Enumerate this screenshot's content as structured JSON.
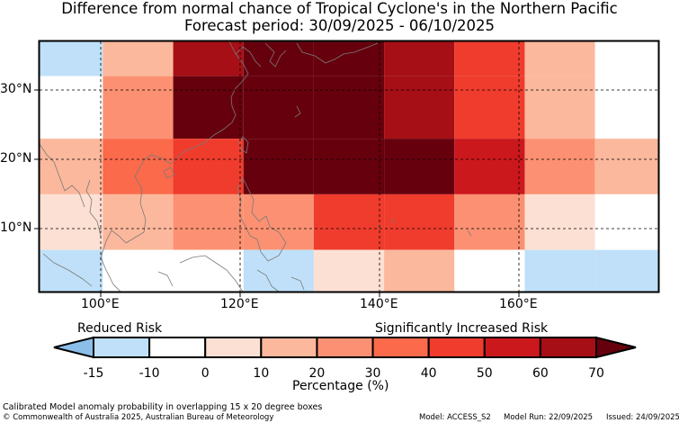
{
  "title": "Difference from normal chance of Tropical Cyclone's in the Northern Pacific",
  "subtitle": "Forecast period: 30/09/2025 - 06/10/2025",
  "lat_labels": [
    "30°N",
    "20°N",
    "10°N"
  ],
  "lon_labels": [
    "100°E",
    "120°E",
    "140°E",
    "160°E"
  ],
  "legend": {
    "left_caption": "Reduced Risk",
    "right_caption": "Significantly Increased Risk",
    "tick_labels": [
      "-15",
      "-10",
      "0",
      "10",
      "20",
      "30",
      "40",
      "50",
      "60",
      "70"
    ],
    "axis_label": "Percentage (%)",
    "colors": [
      "#8bbfe9",
      "#bfe0f8",
      "#ffffff",
      "#fde0d4",
      "#fbb89c",
      "#fb9172",
      "#fa6a4b",
      "#ef3c2d",
      "#cb181d",
      "#a50f15",
      "#67000d"
    ]
  },
  "footer": {
    "note": "Calibrated Model anomaly probability in overlapping 15 x 20 degree boxes",
    "copyright": "© Commonwealth of Australia 2025, Australian Bureau of Meteorology",
    "model": "Model: ACCESS_S2",
    "model_run": "Model Run: 22/09/2025",
    "issued": "Issued: 24/09/2025"
  },
  "map_data": {
    "lon_range": [
      91,
      179
    ],
    "lat_range": [
      0,
      36
    ],
    "cell_columns_deg": [
      91,
      100,
      110,
      120,
      130,
      140,
      150,
      160,
      170,
      179
    ],
    "cell_rows_deg": [
      36,
      31,
      22,
      14,
      6,
      0
    ],
    "cell_colors": [
      [
        "#bfe0f8",
        "#fbb89c",
        "#a50f15",
        "#67000d",
        "#67000d",
        "#a50f15",
        "#ef3c2d",
        "#fbb89c",
        "#ffffff"
      ],
      [
        "#ffffff",
        "#fb9172",
        "#67000d",
        "#67000d",
        "#67000d",
        "#a50f15",
        "#ef3c2d",
        "#fbb89c",
        "#ffffff"
      ],
      [
        "#fbb89c",
        "#fa6a4b",
        "#ef3c2d",
        "#67000d",
        "#67000d",
        "#67000d",
        "#cb181d",
        "#fb9172",
        "#fbb89c"
      ],
      [
        "#fde0d4",
        "#fbb89c",
        "#fb9172",
        "#fb9172",
        "#ef3c2d",
        "#ef3c2d",
        "#fb9172",
        "#fde0d4",
        "#ffffff"
      ],
      [
        "#bfe0f8",
        "#ffffff",
        "#ffffff",
        "#bfe0f8",
        "#fde0d4",
        "#fbb89c",
        "#ffffff",
        "#bfe0f8",
        "#bfe0f8"
      ]
    ]
  }
}
